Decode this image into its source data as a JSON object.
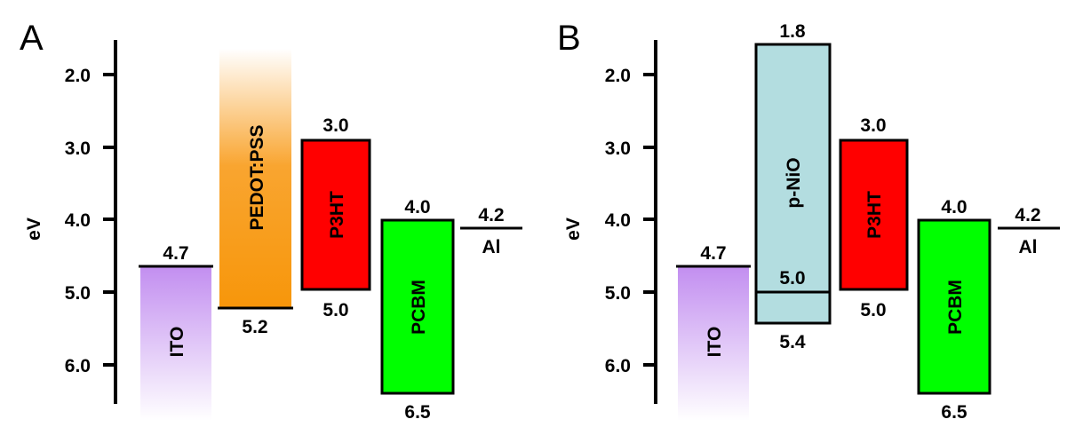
{
  "figure": {
    "panels": [
      {
        "letter": "A",
        "axis_label": "eV",
        "ticks": [
          "2.0",
          "3.0",
          "4.0",
          "5.0",
          "6.0"
        ],
        "layers": [
          {
            "name": "ITO",
            "level": "4.7",
            "color": "#c79cf0",
            "style": "fade-down"
          },
          {
            "name": "PEDOT:PSS",
            "bottom_label": "5.2",
            "color": "#f7960a",
            "style": "fade-up"
          },
          {
            "name": "P3HT",
            "top_label": "3.0",
            "bottom_label": "5.0",
            "color": "#ff0000",
            "style": "box"
          },
          {
            "name": "PCBM",
            "top_label": "4.0",
            "bottom_label": "6.5",
            "color": "#00ff00",
            "style": "box"
          },
          {
            "name": "Al",
            "level": "4.2",
            "style": "line"
          }
        ]
      },
      {
        "letter": "B",
        "axis_label": "eV",
        "ticks": [
          "2.0",
          "3.0",
          "4.0",
          "5.0",
          "6.0"
        ],
        "layers": [
          {
            "name": "ITO",
            "level": "4.7",
            "color": "#c79cf0",
            "style": "fade-down"
          },
          {
            "name": "p-NiO",
            "top_label": "1.8",
            "mid_label": "5.0",
            "bottom_label": "5.4",
            "color": "#b3dde0",
            "style": "box"
          },
          {
            "name": "P3HT",
            "top_label": "3.0",
            "bottom_label": "5.0",
            "color": "#ff0000",
            "style": "box"
          },
          {
            "name": "PCBM",
            "top_label": "4.0",
            "bottom_label": "6.5",
            "color": "#00ff00",
            "style": "box"
          },
          {
            "name": "Al",
            "level": "4.2",
            "style": "line"
          }
        ]
      }
    ]
  }
}
